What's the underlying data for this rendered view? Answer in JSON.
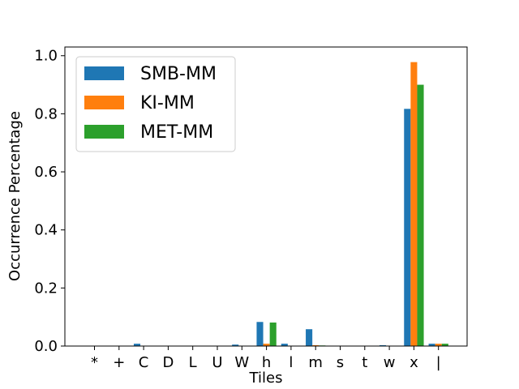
{
  "chart_data": {
    "type": "bar",
    "title": "",
    "xlabel": "Tiles",
    "ylabel": "Occurrence Percentage",
    "categories": [
      "*",
      "+",
      "C",
      "D",
      "L",
      "U",
      "W",
      "h",
      "l",
      "m",
      "s",
      "t",
      "w",
      "x",
      "|"
    ],
    "ylim": [
      0,
      1.03
    ],
    "yticks": [
      "0.0",
      "0.2",
      "0.4",
      "0.6",
      "0.8",
      "1.0"
    ],
    "legend_position": "top-left",
    "grid": false,
    "series": [
      {
        "name": "SMB-MM",
        "color": "#1f77b4",
        "values": [
          0,
          0,
          0.008,
          0,
          0,
          0,
          0.005,
          0.083,
          0.008,
          0.058,
          0,
          0,
          0.003,
          0.817,
          0.008
        ]
      },
      {
        "name": "KI-MM",
        "color": "#ff7f0e",
        "values": [
          0,
          0,
          0,
          0,
          0,
          0,
          0,
          0.008,
          0,
          0.003,
          0,
          0,
          0,
          0.978,
          0.008
        ]
      },
      {
        "name": "MET-MM",
        "color": "#2ca02c",
        "values": [
          0,
          0,
          0,
          0,
          0,
          0,
          0,
          0.081,
          0,
          0.002,
          0,
          0,
          0,
          0.9,
          0.008
        ]
      }
    ]
  }
}
